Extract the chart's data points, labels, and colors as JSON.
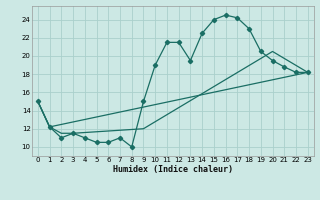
{
  "xlabel": "Humidex (Indice chaleur)",
  "background_color": "#cce8e4",
  "grid_color": "#aad0cc",
  "line_color": "#1a6e64",
  "xlim": [
    -0.5,
    23.5
  ],
  "ylim": [
    9.0,
    25.5
  ],
  "yticks": [
    10,
    12,
    14,
    16,
    18,
    20,
    22,
    24
  ],
  "xticks": [
    0,
    1,
    2,
    3,
    4,
    5,
    6,
    7,
    8,
    9,
    10,
    11,
    12,
    13,
    14,
    15,
    16,
    17,
    18,
    19,
    20,
    21,
    22,
    23
  ],
  "line1_x": [
    0,
    1,
    2,
    3,
    4,
    5,
    6,
    7,
    8,
    9,
    10,
    11,
    12,
    13,
    14,
    15,
    16,
    17,
    18,
    19,
    20,
    21,
    22,
    23
  ],
  "line1_y": [
    15.0,
    12.2,
    11.0,
    11.5,
    11.0,
    10.5,
    10.5,
    11.0,
    10.0,
    15.0,
    19.0,
    21.5,
    21.5,
    19.5,
    22.5,
    24.0,
    24.5,
    24.2,
    23.0,
    20.5,
    19.5,
    18.8,
    18.2,
    18.2
  ],
  "line2_x": [
    0,
    1,
    2,
    3,
    9,
    20,
    23
  ],
  "line2_y": [
    15.0,
    12.2,
    11.5,
    11.5,
    12.0,
    20.5,
    18.2
  ],
  "line3_x": [
    0,
    1,
    23
  ],
  "line3_y": [
    15.0,
    12.2,
    18.2
  ]
}
